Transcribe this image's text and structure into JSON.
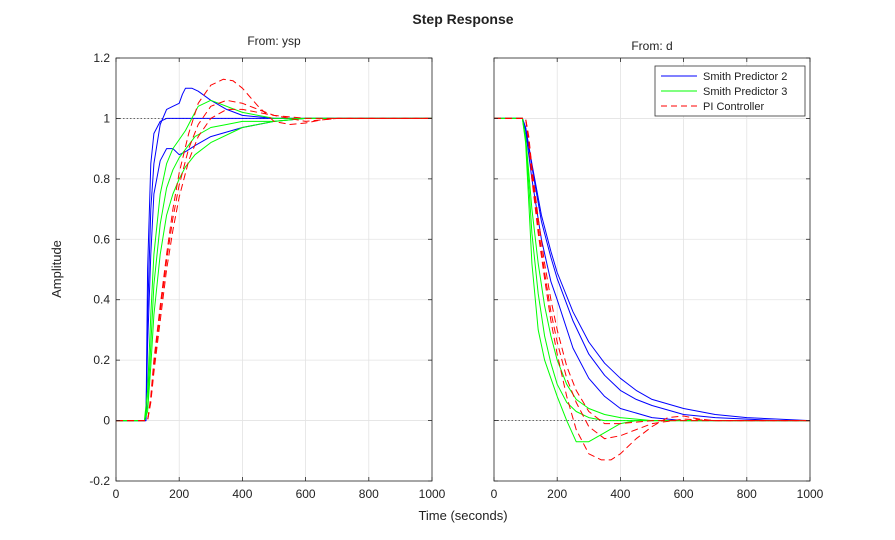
{
  "chart_data": {
    "type": "line",
    "title": "Step Response",
    "xlabel": "Time (seconds)",
    "ylabel": "Amplitude",
    "xlim": [
      0,
      1000
    ],
    "ylim": [
      -0.2,
      1.2
    ],
    "xticks": [
      0,
      200,
      400,
      600,
      800,
      1000
    ],
    "yticks": [
      -0.2,
      0,
      0.2,
      0.4,
      0.6,
      0.8,
      1,
      1.2
    ],
    "xtick_labels": [
      "0",
      "200",
      "400",
      "600",
      "800",
      "1000"
    ],
    "ytick_labels": [
      "-0.2",
      "0",
      "0.2",
      "0.4",
      "0.6",
      "0.8",
      "1",
      "1.2"
    ],
    "grid": true,
    "legend": {
      "placement": "top-right",
      "entries": [
        {
          "name": "Smith Predictor 2",
          "color": "#0000ff",
          "dash": false
        },
        {
          "name": "Smith Predictor 3",
          "color": "#00ff00",
          "dash": false
        },
        {
          "name": "PI Controller",
          "color": "#ff0000",
          "dash": true
        }
      ]
    },
    "panels": [
      {
        "title": "From: ysp",
        "reference_line": 1,
        "series": [
          {
            "legend": 0,
            "x": [
              0,
              90,
              95,
              100,
              110,
              120,
              140,
              160,
              200,
              300,
              400,
              600,
              800,
              1000
            ],
            "y": [
              0,
              0,
              0,
              0.5,
              0.85,
              0.95,
              0.99,
              1.0,
              1.0,
              1.0,
              1.0,
              1.0,
              1.0,
              1.0
            ]
          },
          {
            "legend": 0,
            "x": [
              0,
              90,
              95,
              100,
              110,
              120,
              140,
              160,
              180,
              200,
              210,
              220,
              240,
              260,
              300,
              350,
              400,
              500,
              600,
              800,
              1000
            ],
            "y": [
              0,
              0,
              0,
              0.35,
              0.7,
              0.85,
              0.98,
              1.03,
              1.04,
              1.05,
              1.08,
              1.1,
              1.1,
              1.09,
              1.06,
              1.03,
              1.01,
              1.0,
              1.0,
              1.0,
              1.0
            ]
          },
          {
            "legend": 0,
            "x": [
              0,
              90,
              95,
              100,
              110,
              120,
              140,
              160,
              180,
              200,
              220,
              250,
              300,
              400,
              500,
              600,
              800,
              1000
            ],
            "y": [
              0,
              0,
              0,
              0.25,
              0.55,
              0.75,
              0.86,
              0.9,
              0.9,
              0.88,
              0.89,
              0.91,
              0.94,
              0.97,
              0.99,
              1.0,
              1.0,
              1.0
            ]
          },
          {
            "legend": 1,
            "x": [
              0,
              90,
              100,
              110,
              120,
              140,
              160,
              180,
              200,
              220,
              240,
              260,
              300,
              400,
              500,
              600,
              800,
              1000
            ],
            "y": [
              0,
              0,
              0.1,
              0.35,
              0.55,
              0.75,
              0.85,
              0.9,
              0.93,
              0.96,
              1.0,
              1.04,
              1.06,
              1.02,
              1.0,
              1.0,
              1.0,
              1.0
            ]
          },
          {
            "legend": 1,
            "x": [
              0,
              90,
              100,
              110,
              120,
              140,
              160,
              180,
              200,
              250,
              300,
              350,
              400,
              500,
              600,
              800,
              1000
            ],
            "y": [
              0,
              0,
              0.05,
              0.25,
              0.45,
              0.65,
              0.77,
              0.83,
              0.87,
              0.94,
              0.97,
              0.98,
              0.99,
              0.99,
              1.0,
              1.0,
              1.0
            ]
          },
          {
            "legend": 1,
            "x": [
              0,
              90,
              100,
              110,
              120,
              140,
              160,
              180,
              200,
              220,
              250,
              300,
              400,
              500,
              600,
              800,
              1000
            ],
            "y": [
              0,
              0,
              0.03,
              0.18,
              0.35,
              0.55,
              0.68,
              0.75,
              0.8,
              0.84,
              0.88,
              0.92,
              0.97,
              0.99,
              1.0,
              1.0,
              1.0
            ]
          },
          {
            "legend": 2,
            "x": [
              0,
              100,
              110,
              120,
              140,
              160,
              180,
              200,
              230,
              260,
              300,
              340,
              370,
              400,
              450,
              500,
              550,
              600,
              650,
              700,
              800,
              1000
            ],
            "y": [
              0,
              0,
              0.08,
              0.2,
              0.38,
              0.55,
              0.7,
              0.82,
              0.95,
              1.05,
              1.11,
              1.13,
              1.125,
              1.1,
              1.04,
              0.99,
              0.98,
              0.985,
              0.995,
              1.0,
              1.0,
              1.0
            ]
          },
          {
            "legend": 2,
            "x": [
              0,
              100,
              110,
              120,
              140,
              160,
              180,
              200,
              230,
              260,
              300,
              350,
              400,
              450,
              500,
              600,
              700,
              800,
              1000
            ],
            "y": [
              0,
              0,
              0.07,
              0.18,
              0.36,
              0.53,
              0.67,
              0.78,
              0.9,
              0.98,
              1.04,
              1.06,
              1.05,
              1.03,
              1.01,
              0.99,
              1.0,
              1.0,
              1.0
            ]
          },
          {
            "legend": 2,
            "x": [
              0,
              100,
              110,
              120,
              140,
              160,
              180,
              200,
              230,
              260,
              300,
              350,
              400,
              450,
              500,
              600,
              700,
              800,
              1000
            ],
            "y": [
              0,
              0,
              0.06,
              0.16,
              0.33,
              0.5,
              0.63,
              0.74,
              0.86,
              0.94,
              1.0,
              1.03,
              1.03,
              1.02,
              1.01,
              1.0,
              1.0,
              1.0,
              1.0
            ]
          }
        ]
      },
      {
        "title": "From: d",
        "reference_line": 0,
        "series": [
          {
            "legend": 0,
            "x": [
              0,
              90,
              100,
              120,
              150,
              180,
              200,
              250,
              300,
              350,
              400,
              500,
              600,
              700,
              800,
              1000
            ],
            "y": [
              1,
              1,
              0.96,
              0.8,
              0.6,
              0.46,
              0.4,
              0.24,
              0.14,
              0.08,
              0.04,
              0.01,
              0,
              0,
              0,
              0
            ]
          },
          {
            "legend": 0,
            "x": [
              0,
              90,
              100,
              120,
              150,
              180,
              200,
              250,
              300,
              350,
              400,
              450,
              500,
              600,
              700,
              800,
              900,
              1000
            ],
            "y": [
              1,
              1,
              0.97,
              0.85,
              0.68,
              0.56,
              0.49,
              0.36,
              0.26,
              0.19,
              0.14,
              0.1,
              0.07,
              0.04,
              0.02,
              0.01,
              0.005,
              0
            ]
          },
          {
            "legend": 0,
            "x": [
              0,
              90,
              100,
              120,
              150,
              180,
              200,
              250,
              300,
              350,
              400,
              450,
              500,
              600,
              700,
              800,
              900,
              1000
            ],
            "y": [
              1,
              1,
              0.97,
              0.84,
              0.66,
              0.54,
              0.47,
              0.33,
              0.22,
              0.15,
              0.1,
              0.07,
              0.05,
              0.02,
              0.01,
              0.005,
              0,
              0
            ]
          },
          {
            "legend": 1,
            "x": [
              0,
              90,
              100,
              110,
              120,
              140,
              160,
              180,
              200,
              230,
              260,
              300,
              350,
              400,
              450,
              500,
              600,
              1000
            ],
            "y": [
              1,
              1,
              0.92,
              0.72,
              0.52,
              0.3,
              0.2,
              0.14,
              0.08,
              0.0,
              -0.07,
              -0.07,
              -0.04,
              -0.01,
              0,
              0,
              0,
              0
            ]
          },
          {
            "legend": 1,
            "x": [
              0,
              90,
              100,
              110,
              120,
              140,
              160,
              180,
              200,
              230,
              260,
              300,
              350,
              400,
              500,
              600,
              1000
            ],
            "y": [
              1,
              1,
              0.93,
              0.78,
              0.62,
              0.42,
              0.28,
              0.19,
              0.12,
              0.06,
              0.03,
              0.01,
              0,
              0,
              0,
              0,
              0
            ]
          },
          {
            "legend": 1,
            "x": [
              0,
              90,
              100,
              110,
              120,
              140,
              160,
              180,
              200,
              230,
              260,
              300,
              350,
              400,
              500,
              600,
              1000
            ],
            "y": [
              1,
              1,
              0.94,
              0.82,
              0.7,
              0.52,
              0.38,
              0.28,
              0.2,
              0.12,
              0.07,
              0.04,
              0.02,
              0.01,
              0,
              0,
              0
            ]
          },
          {
            "legend": 2,
            "x": [
              0,
              100,
              110,
              120,
              140,
              160,
              180,
              200,
              230,
              260,
              300,
              340,
              370,
              400,
              450,
              500,
              550,
              600,
              650,
              700,
              800,
              1000
            ],
            "y": [
              1,
              1,
              0.92,
              0.8,
              0.62,
              0.47,
              0.33,
              0.22,
              0.08,
              -0.03,
              -0.11,
              -0.13,
              -0.13,
              -0.11,
              -0.06,
              -0.02,
              0.01,
              0.015,
              0.005,
              0,
              0,
              0
            ]
          },
          {
            "legend": 2,
            "x": [
              0,
              100,
              110,
              120,
              140,
              160,
              180,
              200,
              230,
              260,
              300,
              350,
              400,
              450,
              500,
              600,
              700,
              800,
              1000
            ],
            "y": [
              1,
              1,
              0.93,
              0.82,
              0.64,
              0.49,
              0.36,
              0.26,
              0.14,
              0.06,
              -0.02,
              -0.06,
              -0.05,
              -0.03,
              -0.01,
              0.005,
              0,
              0,
              0
            ]
          },
          {
            "legend": 2,
            "x": [
              0,
              100,
              110,
              120,
              140,
              160,
              180,
              200,
              230,
              260,
              300,
              350,
              400,
              450,
              500,
              600,
              700,
              800,
              1000
            ],
            "y": [
              1,
              1,
              0.94,
              0.84,
              0.67,
              0.52,
              0.4,
              0.3,
              0.18,
              0.1,
              0.03,
              -0.01,
              -0.01,
              -0.005,
              0,
              0,
              0,
              0,
              0
            ]
          }
        ]
      }
    ]
  }
}
